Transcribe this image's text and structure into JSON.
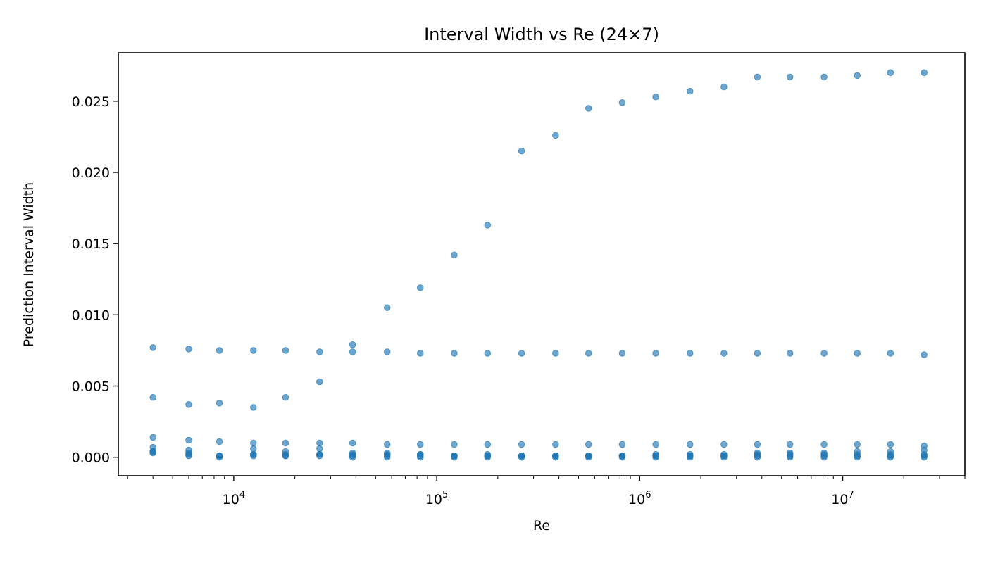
{
  "chart_data": {
    "type": "scatter",
    "title": "Interval Width vs Re (24×7)",
    "xlabel": "Re",
    "ylabel": "Prediction Interval Width",
    "xscale": "log",
    "xlim": [
      2700,
      40000000
    ],
    "ylim": [
      -0.0013,
      0.0284
    ],
    "xticks": [
      {
        "value": 10000,
        "base": "10",
        "exp": "4"
      },
      {
        "value": 100000,
        "base": "10",
        "exp": "5"
      },
      {
        "value": 1000000,
        "base": "10",
        "exp": "6"
      },
      {
        "value": 10000000,
        "base": "10",
        "exp": "7"
      }
    ],
    "yticks": [
      {
        "value": 0.0,
        "label": "0.000"
      },
      {
        "value": 0.005,
        "label": "0.005"
      },
      {
        "value": 0.01,
        "label": "0.010"
      },
      {
        "value": 0.015,
        "label": "0.015"
      },
      {
        "value": 0.02,
        "label": "0.020"
      },
      {
        "value": 0.025,
        "label": "0.025"
      }
    ],
    "grid": false,
    "legend": "none",
    "marker_color": "#1f77b4",
    "marker_alpha": 0.65,
    "x": [
      4000,
      6000,
      8500,
      12500,
      18000,
      26500,
      38500,
      57000,
      83000,
      122000,
      178000,
      262000,
      385000,
      560000,
      820000,
      1200000,
      1770000,
      2600000,
      3800000,
      5500000,
      8100000,
      11800000,
      17200000,
      25200000
    ],
    "series": [
      {
        "values": [
          0.0042,
          0.0037,
          0.0038,
          0.0035,
          0.0042,
          0.0053,
          0.0079,
          0.0105,
          0.0119,
          0.0142,
          0.0163,
          0.0215,
          0.0226,
          0.0245,
          0.0249,
          0.0253,
          0.0257,
          0.026,
          0.0267,
          0.0267,
          0.0267,
          0.0268,
          0.027,
          0.027
        ]
      },
      {
        "values": [
          0.0077,
          0.0076,
          0.0075,
          0.0075,
          0.0075,
          0.0074,
          0.0074,
          0.0074,
          0.0073,
          0.0073,
          0.0073,
          0.0073,
          0.0073,
          0.0073,
          0.0073,
          0.0073,
          0.0073,
          0.0073,
          0.0073,
          0.0073,
          0.0073,
          0.0073,
          0.0073,
          0.0072
        ]
      },
      {
        "values": [
          0.0014,
          0.0012,
          0.0011,
          0.001,
          0.001,
          0.001,
          0.001,
          0.0009,
          0.0009,
          0.0009,
          0.0009,
          0.0009,
          0.0009,
          0.0009,
          0.0009,
          0.0009,
          0.0009,
          0.0009,
          0.0009,
          0.0009,
          0.0009,
          0.0009,
          0.0009,
          0.0008
        ]
      },
      {
        "values": [
          0.0007,
          0.0005,
          0.0001,
          0.0006,
          0.0004,
          0.0006,
          0.0003,
          0.0003,
          0.0002,
          0.0001,
          0.0002,
          0.0001,
          0.0001,
          0.0001,
          0.0001,
          0.0002,
          0.0002,
          0.0002,
          0.0003,
          0.0003,
          0.0003,
          0.0004,
          0.0004,
          0.0005
        ]
      },
      {
        "values": [
          0.0004,
          0.0003,
          0.0001,
          0.0002,
          0.0002,
          0.0002,
          0.0002,
          0.0002,
          0.0002,
          0.0001,
          0.0001,
          0.0001,
          0.0001,
          0.0001,
          0.0001,
          0.0001,
          0.0001,
          0.0001,
          0.0002,
          0.0002,
          0.0002,
          0.0002,
          0.0002,
          0.0002
        ]
      },
      {
        "values": [
          0.0004,
          0.0002,
          0.0001,
          0.0002,
          0.0001,
          0.0002,
          0.0001,
          0.0001,
          0.0001,
          0.0001,
          0.0001,
          0.0001,
          0.0001,
          0.0001,
          0.0001,
          0.0001,
          0.0001,
          0.0001,
          0.0001,
          0.0001,
          0.0001,
          0.0001,
          0.0001,
          0.0001
        ]
      },
      {
        "values": [
          0.0003,
          0.0001,
          0.0,
          0.0001,
          0.0001,
          0.0001,
          0.0,
          0.0,
          0.0,
          0.0,
          0.0,
          0.0,
          0.0,
          0.0,
          0.0,
          0.0,
          0.0,
          0.0,
          0.0,
          0.0,
          0.0,
          0.0,
          0.0,
          0.0
        ]
      }
    ]
  }
}
